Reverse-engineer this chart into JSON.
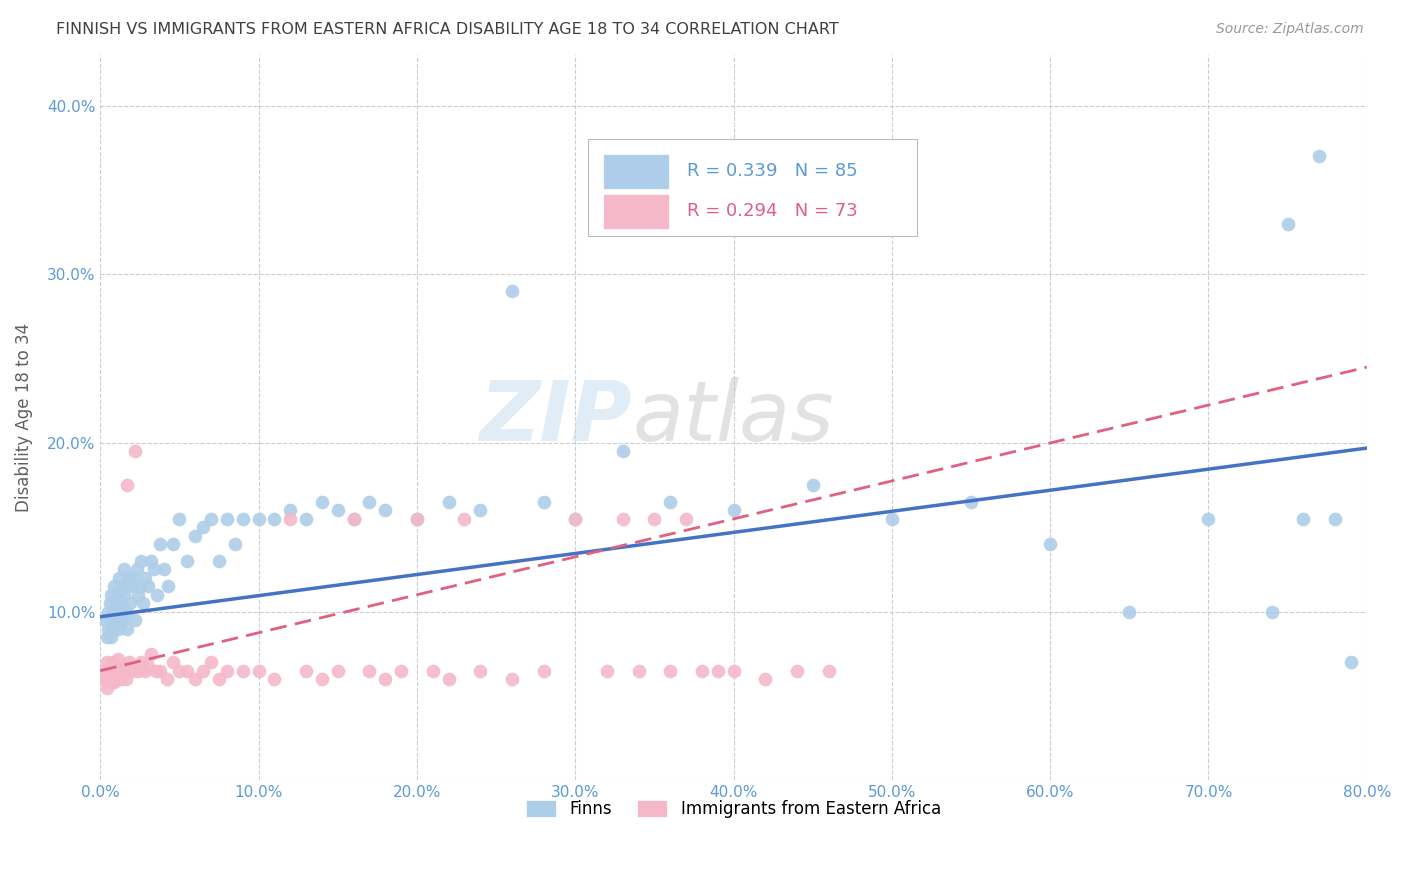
{
  "title": "FINNISH VS IMMIGRANTS FROM EASTERN AFRICA DISABILITY AGE 18 TO 34 CORRELATION CHART",
  "source": "Source: ZipAtlas.com",
  "ylabel": "Disability Age 18 to 34",
  "xlim": [
    0.0,
    0.8
  ],
  "ylim": [
    0.0,
    0.43
  ],
  "xticks": [
    0.0,
    0.1,
    0.2,
    0.3,
    0.4,
    0.5,
    0.6,
    0.7,
    0.8
  ],
  "yticks": [
    0.0,
    0.1,
    0.2,
    0.3,
    0.4
  ],
  "xticklabels": [
    "0.0%",
    "10.0%",
    "20.0%",
    "30.0%",
    "40.0%",
    "50.0%",
    "60.0%",
    "70.0%",
    "80.0%"
  ],
  "yticklabels": [
    "",
    "10.0%",
    "20.0%",
    "30.0%",
    "40.0%"
  ],
  "legend_labels": [
    "Finns",
    "Immigrants from Eastern Africa"
  ],
  "R_finns": 0.339,
  "N_finns": 85,
  "R_immigrants": 0.294,
  "N_immigrants": 73,
  "color_finns": "#aecde8",
  "color_immigrants": "#f4b8c8",
  "color_line_finns": "#4472c4",
  "color_line_immigrants": "#e06080",
  "background_color": "#ffffff",
  "grid_color": "#c8c8c8",
  "title_color": "#404040",
  "watermark_zip": "ZIP",
  "watermark_atlas": "atlas",
  "tick_color": "#5b9bd5",
  "finns_x": [
    0.003,
    0.004,
    0.005,
    0.005,
    0.006,
    0.006,
    0.007,
    0.007,
    0.008,
    0.008,
    0.009,
    0.009,
    0.01,
    0.01,
    0.011,
    0.011,
    0.012,
    0.012,
    0.013,
    0.013,
    0.014,
    0.014,
    0.015,
    0.015,
    0.016,
    0.016,
    0.017,
    0.018,
    0.019,
    0.02,
    0.021,
    0.022,
    0.023,
    0.024,
    0.025,
    0.026,
    0.027,
    0.028,
    0.03,
    0.032,
    0.034,
    0.036,
    0.038,
    0.04,
    0.043,
    0.046,
    0.05,
    0.055,
    0.06,
    0.065,
    0.07,
    0.075,
    0.08,
    0.085,
    0.09,
    0.1,
    0.11,
    0.12,
    0.13,
    0.14,
    0.15,
    0.16,
    0.17,
    0.18,
    0.2,
    0.22,
    0.24,
    0.26,
    0.28,
    0.3,
    0.33,
    0.36,
    0.4,
    0.45,
    0.5,
    0.55,
    0.6,
    0.65,
    0.7,
    0.74,
    0.75,
    0.76,
    0.77,
    0.78,
    0.79
  ],
  "finns_y": [
    0.095,
    0.085,
    0.09,
    0.1,
    0.105,
    0.095,
    0.085,
    0.11,
    0.09,
    0.1,
    0.1,
    0.115,
    0.095,
    0.105,
    0.09,
    0.11,
    0.1,
    0.12,
    0.095,
    0.105,
    0.115,
    0.095,
    0.11,
    0.125,
    0.1,
    0.115,
    0.09,
    0.12,
    0.105,
    0.115,
    0.12,
    0.095,
    0.125,
    0.11,
    0.115,
    0.13,
    0.105,
    0.12,
    0.115,
    0.13,
    0.125,
    0.11,
    0.14,
    0.125,
    0.115,
    0.14,
    0.155,
    0.13,
    0.145,
    0.15,
    0.155,
    0.13,
    0.155,
    0.14,
    0.155,
    0.155,
    0.155,
    0.16,
    0.155,
    0.165,
    0.16,
    0.155,
    0.165,
    0.16,
    0.155,
    0.165,
    0.16,
    0.29,
    0.165,
    0.155,
    0.195,
    0.165,
    0.16,
    0.175,
    0.155,
    0.165,
    0.14,
    0.1,
    0.155,
    0.1,
    0.33,
    0.155,
    0.37,
    0.155,
    0.07
  ],
  "immigrants_x": [
    0.002,
    0.003,
    0.004,
    0.004,
    0.005,
    0.005,
    0.006,
    0.006,
    0.007,
    0.007,
    0.008,
    0.008,
    0.009,
    0.009,
    0.01,
    0.01,
    0.011,
    0.012,
    0.013,
    0.014,
    0.015,
    0.016,
    0.017,
    0.018,
    0.02,
    0.022,
    0.024,
    0.026,
    0.028,
    0.03,
    0.032,
    0.035,
    0.038,
    0.042,
    0.046,
    0.05,
    0.055,
    0.06,
    0.065,
    0.07,
    0.075,
    0.08,
    0.09,
    0.1,
    0.11,
    0.12,
    0.13,
    0.14,
    0.15,
    0.16,
    0.17,
    0.18,
    0.19,
    0.2,
    0.21,
    0.22,
    0.23,
    0.24,
    0.26,
    0.28,
    0.3,
    0.32,
    0.33,
    0.34,
    0.35,
    0.36,
    0.37,
    0.38,
    0.39,
    0.4,
    0.42,
    0.44,
    0.46
  ],
  "immigrants_y": [
    0.065,
    0.06,
    0.07,
    0.055,
    0.065,
    0.058,
    0.062,
    0.06,
    0.068,
    0.058,
    0.06,
    0.07,
    0.062,
    0.058,
    0.065,
    0.06,
    0.072,
    0.065,
    0.06,
    0.068,
    0.065,
    0.06,
    0.175,
    0.07,
    0.065,
    0.195,
    0.065,
    0.07,
    0.065,
    0.068,
    0.075,
    0.065,
    0.065,
    0.06,
    0.07,
    0.065,
    0.065,
    0.06,
    0.065,
    0.07,
    0.06,
    0.065,
    0.065,
    0.065,
    0.06,
    0.155,
    0.065,
    0.06,
    0.065,
    0.155,
    0.065,
    0.06,
    0.065,
    0.155,
    0.065,
    0.06,
    0.155,
    0.065,
    0.06,
    0.065,
    0.155,
    0.065,
    0.155,
    0.065,
    0.155,
    0.065,
    0.155,
    0.065,
    0.065,
    0.065,
    0.06,
    0.065,
    0.065
  ],
  "line_finns_x0": 0.0,
  "line_finns_x1": 0.8,
  "line_finns_y0": 0.097,
  "line_finns_y1": 0.197,
  "line_immig_x0": 0.0,
  "line_immig_x1": 0.8,
  "line_immig_y0": 0.065,
  "line_immig_y1": 0.245
}
